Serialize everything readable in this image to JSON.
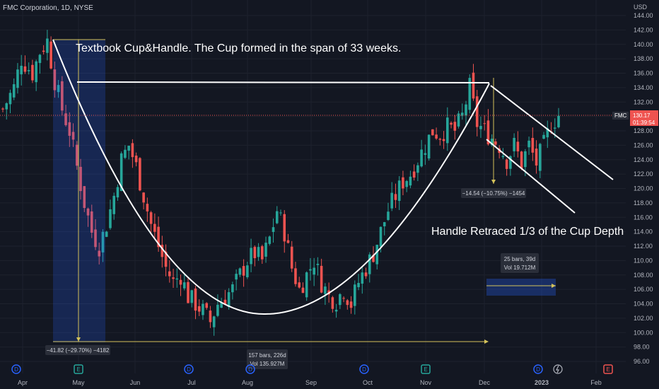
{
  "header": {
    "symbol_line": "FMC Corporation, 1D, NYSE"
  },
  "currency": "USD",
  "annotations": {
    "cup_text": "Textbook Cup&Handle. The Cup formed in the span of 33 weeks.",
    "handle_text": "Handle Retraced 1/3 of the Cup Depth",
    "cup_measure": "−41.82 (−29.70%) −4182",
    "handle_measure": "−14.54 (−10.75%) −1454",
    "bars_measure_1": "157 bars, 226d",
    "vol_measure_1": "Vol 135.927M",
    "bars_measure_2": "25 bars, 39d",
    "vol_measure_2": "Vol 19.712M"
  },
  "price_tag": {
    "ticker": "FMC",
    "price": "130.17",
    "countdown": "01:39:54"
  },
  "events": [
    {
      "label": "D",
      "color": "#2962ff"
    },
    {
      "label": "E",
      "color": "#26a69a"
    },
    {
      "label": "D",
      "color": "#2962ff"
    },
    {
      "label": "D",
      "color": "#2962ff"
    },
    {
      "label": "D",
      "color": "#2962ff"
    },
    {
      "label": "E",
      "color": "#26a69a"
    },
    {
      "label": "D",
      "color": "#2962ff"
    },
    {
      "label": "E",
      "color": "#ef5350"
    }
  ],
  "colors": {
    "up": "#26a69a",
    "down": "#ef5350",
    "measure": "#d4c25a",
    "bg": "#131722"
  },
  "chart_data": {
    "type": "candlestick",
    "title": "FMC Corporation, 1D, NYSE",
    "x_tick_labels": [
      "Apr",
      "May",
      "Jun",
      "Jul",
      "Aug",
      "Sep",
      "Oct",
      "Nov",
      "Dec",
      "2023",
      "Feb"
    ],
    "y_ticks": [
      96,
      98,
      100,
      102,
      104,
      106,
      108,
      110,
      112,
      114,
      116,
      118,
      120,
      122,
      124,
      126,
      128,
      130,
      132,
      134,
      136,
      138,
      140,
      142,
      144
    ],
    "ylim": [
      95,
      145
    ],
    "last_price": 130.17,
    "close_path": [
      [
        0,
        131
      ],
      [
        3,
        134
      ],
      [
        5,
        138
      ],
      [
        8,
        136
      ],
      [
        10,
        139
      ],
      [
        12,
        140.5
      ],
      [
        14,
        135
      ],
      [
        16,
        131
      ],
      [
        18,
        128
      ],
      [
        20,
        123
      ],
      [
        22,
        118
      ],
      [
        24,
        114
      ],
      [
        26,
        112
      ],
      [
        28,
        115
      ],
      [
        30,
        119
      ],
      [
        32,
        124
      ],
      [
        34,
        126
      ],
      [
        36,
        123
      ],
      [
        38,
        119
      ],
      [
        40,
        115
      ],
      [
        42,
        112
      ],
      [
        44,
        109
      ],
      [
        46,
        107
      ],
      [
        48,
        108
      ],
      [
        50,
        105
      ],
      [
        52,
        104
      ],
      [
        54,
        103
      ],
      [
        56,
        101.5
      ],
      [
        58,
        104
      ],
      [
        60,
        105
      ],
      [
        62,
        106
      ],
      [
        64,
        108
      ],
      [
        66,
        110
      ],
      [
        68,
        111
      ],
      [
        70,
        110
      ],
      [
        72,
        113
      ],
      [
        74,
        117
      ],
      [
        76,
        114
      ],
      [
        78,
        109
      ],
      [
        80,
        106
      ],
      [
        82,
        108
      ],
      [
        84,
        110
      ],
      [
        86,
        107
      ],
      [
        88,
        105
      ],
      [
        90,
        104.5
      ],
      [
        92,
        106
      ],
      [
        94,
        104
      ],
      [
        96,
        107
      ],
      [
        98,
        109
      ],
      [
        100,
        111
      ],
      [
        102,
        114
      ],
      [
        104,
        117
      ],
      [
        106,
        119
      ],
      [
        108,
        121
      ],
      [
        110,
        122
      ],
      [
        112,
        124
      ],
      [
        114,
        126
      ],
      [
        116,
        128
      ],
      [
        118,
        127.5
      ],
      [
        120,
        128.5
      ],
      [
        122,
        128
      ],
      [
        124,
        130
      ],
      [
        126,
        134
      ],
      [
        128,
        129
      ],
      [
        130,
        128
      ],
      [
        132,
        127
      ],
      [
        134,
        126
      ],
      [
        136,
        124
      ],
      [
        138,
        126
      ],
      [
        140,
        123.5
      ],
      [
        142,
        126
      ],
      [
        144,
        123.5
      ],
      [
        146,
        126
      ],
      [
        148,
        129
      ],
      [
        150,
        130.17
      ]
    ]
  }
}
